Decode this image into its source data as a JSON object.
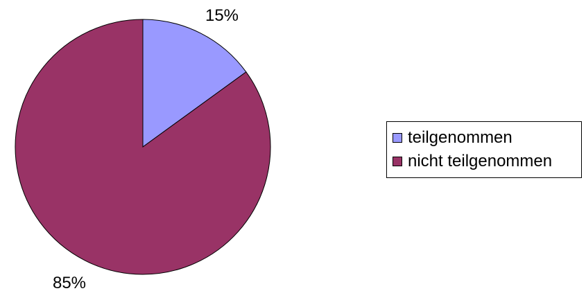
{
  "chart_data": {
    "type": "pie",
    "title": "",
    "slices": [
      {
        "label": "teilgenommen",
        "value": 15,
        "value_label": "15%",
        "color": "#9999FF"
      },
      {
        "label": "nicht teilgenommen",
        "value": 85,
        "value_label": "85%",
        "color": "#993366"
      }
    ],
    "legend": {
      "placement": "right",
      "entries": [
        {
          "label": "teilgenommen",
          "color": "#9999FF"
        },
        {
          "label": "nicht teilgenommen",
          "color": "#993366"
        }
      ]
    },
    "start_angle": "12 o'clock",
    "direction": "clockwise"
  }
}
